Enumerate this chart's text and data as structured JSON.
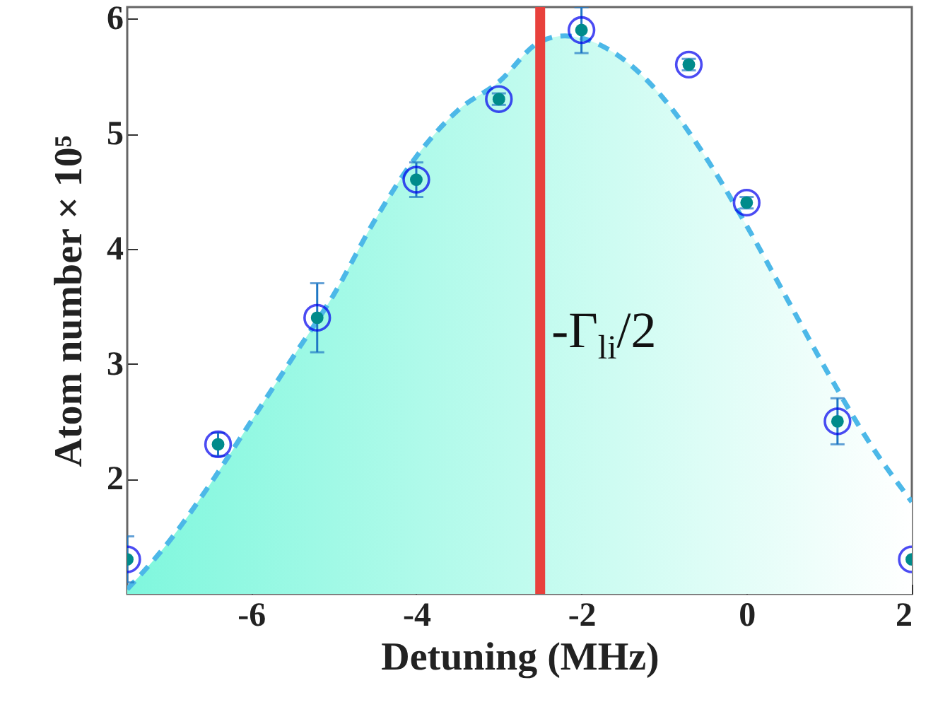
{
  "chart_data": {
    "type": "scatter",
    "xlabel": "Detuning (MHz)",
    "ylabel": "Atom number × 10⁵",
    "xlim": [
      -7.5,
      2
    ],
    "ylim": [
      1,
      6.1
    ],
    "xticks": [
      -6,
      -4,
      -2,
      0,
      2
    ],
    "yticks": [
      2,
      3,
      4,
      5,
      6
    ],
    "grid": false,
    "series": [
      {
        "type": "area",
        "color": "#4cb8e8",
        "line_style": "dashed",
        "marker": "none",
        "x": [
          -7.5,
          -7,
          -6.5,
          -6,
          -5.5,
          -5,
          -4.5,
          -4,
          -3.5,
          -3,
          -2.5,
          -2.2,
          -2,
          -1.5,
          -1,
          -0.5,
          0,
          0.5,
          1,
          1.5,
          2
        ],
        "values": [
          1.04,
          1.45,
          1.95,
          2.5,
          3.05,
          3.6,
          4.25,
          4.8,
          5.2,
          5.45,
          5.8,
          5.85,
          5.83,
          5.65,
          5.3,
          4.8,
          4.2,
          3.55,
          2.9,
          2.3,
          1.8
        ]
      },
      {
        "color": "#008b8b",
        "marker": "circle",
        "x": [
          -7.5,
          -6.4,
          -5.2,
          -4,
          -3,
          -2,
          -0.7,
          0,
          1.1,
          2
        ],
        "values": [
          1.3,
          2.3,
          3.4,
          4.6,
          5.3,
          5.9,
          5.6,
          4.4,
          2.5,
          1.3
        ],
        "errors": [
          0.2,
          0.1,
          0.3,
          0.15,
          0.05,
          0.2,
          0.05,
          0.05,
          0.2,
          null
        ]
      }
    ],
    "ref_lines": [
      {
        "axis": "x",
        "value": -2.5,
        "label": "-Γ$_{li}$/2",
        "color": "#e8413c"
      }
    ]
  }
}
